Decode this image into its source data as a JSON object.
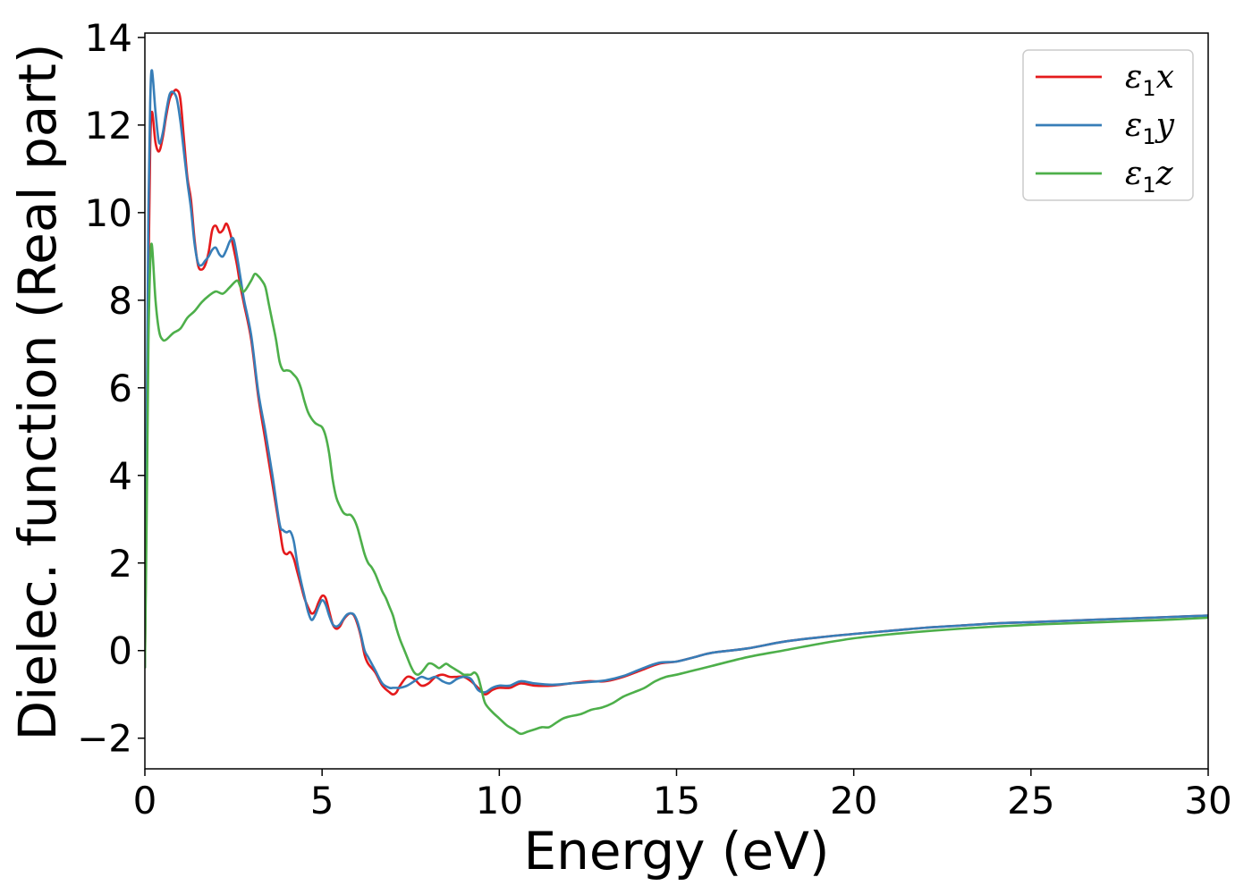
{
  "chart_data": {
    "type": "line",
    "title": "",
    "xlabel": "Energy (eV)",
    "ylabel": "Dielec. function (Real part)",
    "xlim": [
      0,
      30
    ],
    "ylim": [
      -2.7,
      14.1
    ],
    "xticks": [
      0,
      5,
      10,
      15,
      20,
      25,
      30
    ],
    "xtick_labels": [
      "0",
      "5",
      "10",
      "15",
      "20",
      "25",
      "30"
    ],
    "yticks": [
      -2,
      0,
      2,
      4,
      6,
      8,
      10,
      12,
      14
    ],
    "ytick_labels": [
      "−2",
      "0",
      "2",
      "4",
      "6",
      "8",
      "10",
      "12",
      "14"
    ],
    "grid": false,
    "legend_position": "top-right",
    "series": [
      {
        "name": "ε₁x",
        "legend": {
          "symbol": "ε",
          "sub": "1",
          "axis": "x"
        },
        "color": "#e41a1c",
        "x": [
          0,
          0.05,
          0.1,
          0.15,
          0.2,
          0.3,
          0.4,
          0.5,
          0.6,
          0.7,
          0.8,
          0.9,
          1.0,
          1.1,
          1.2,
          1.3,
          1.4,
          1.5,
          1.6,
          1.7,
          1.8,
          1.9,
          2.0,
          2.1,
          2.2,
          2.3,
          2.4,
          2.5,
          2.6,
          2.7,
          2.8,
          3.0,
          3.2,
          3.4,
          3.6,
          3.8,
          3.9,
          4.0,
          4.1,
          4.2,
          4.3,
          4.4,
          4.5,
          4.6,
          4.7,
          4.8,
          4.9,
          5.0,
          5.1,
          5.2,
          5.3,
          5.4,
          5.5,
          5.6,
          5.7,
          5.8,
          5.9,
          6.0,
          6.1,
          6.2,
          6.3,
          6.5,
          6.7,
          6.9,
          7.0,
          7.1,
          7.2,
          7.4,
          7.6,
          7.8,
          8.0,
          8.2,
          8.4,
          8.6,
          8.8,
          9.0,
          9.2,
          9.4,
          9.6,
          9.8,
          10.0,
          10.3,
          10.6,
          11.0,
          11.5,
          12.0,
          12.5,
          13.0,
          13.5,
          14.0,
          14.5,
          15.0,
          15.5,
          16.0,
          17.0,
          18.0,
          19.0,
          20.0,
          21.0,
          22.0,
          23.0,
          24.0,
          25.0,
          26.0,
          27.0,
          28.0,
          29.0,
          30.0
        ],
        "y": [
          -0.4,
          4.0,
          8.5,
          11.5,
          12.3,
          11.6,
          11.4,
          11.7,
          12.2,
          12.6,
          12.75,
          12.8,
          12.6,
          11.7,
          10.8,
          10.3,
          9.4,
          8.8,
          8.7,
          8.8,
          9.1,
          9.6,
          9.7,
          9.55,
          9.6,
          9.75,
          9.55,
          9.2,
          8.8,
          8.3,
          7.9,
          7.1,
          5.8,
          4.8,
          3.8,
          2.8,
          2.3,
          2.2,
          2.25,
          2.1,
          1.8,
          1.5,
          1.2,
          1.0,
          0.85,
          0.9,
          1.1,
          1.25,
          1.2,
          0.9,
          0.6,
          0.5,
          0.55,
          0.7,
          0.8,
          0.85,
          0.8,
          0.6,
          0.3,
          -0.1,
          -0.3,
          -0.5,
          -0.8,
          -0.95,
          -1.0,
          -0.95,
          -0.8,
          -0.6,
          -0.65,
          -0.8,
          -0.75,
          -0.6,
          -0.55,
          -0.6,
          -0.6,
          -0.6,
          -0.7,
          -0.85,
          -1.0,
          -0.9,
          -0.85,
          -0.85,
          -0.75,
          -0.8,
          -0.8,
          -0.75,
          -0.7,
          -0.7,
          -0.6,
          -0.45,
          -0.3,
          -0.25,
          -0.15,
          -0.05,
          0.05,
          0.2,
          0.3,
          0.38,
          0.45,
          0.52,
          0.57,
          0.62,
          0.65,
          0.68,
          0.71,
          0.74,
          0.77,
          0.8
        ]
      },
      {
        "name": "ε₁y",
        "legend": {
          "symbol": "ε",
          "sub": "1",
          "axis": "y"
        },
        "color": "#377eb8",
        "x": [
          0,
          0.05,
          0.1,
          0.15,
          0.2,
          0.3,
          0.4,
          0.5,
          0.6,
          0.7,
          0.8,
          0.9,
          1.0,
          1.1,
          1.2,
          1.3,
          1.4,
          1.5,
          1.6,
          1.7,
          1.8,
          1.9,
          2.0,
          2.1,
          2.2,
          2.3,
          2.4,
          2.5,
          2.6,
          2.7,
          2.8,
          3.0,
          3.2,
          3.4,
          3.6,
          3.8,
          3.9,
          4.0,
          4.1,
          4.2,
          4.3,
          4.4,
          4.5,
          4.6,
          4.7,
          4.8,
          4.9,
          5.0,
          5.1,
          5.2,
          5.3,
          5.4,
          5.5,
          5.6,
          5.7,
          5.8,
          5.9,
          6.0,
          6.1,
          6.2,
          6.3,
          6.5,
          6.7,
          6.9,
          7.0,
          7.1,
          7.2,
          7.4,
          7.6,
          7.8,
          8.0,
          8.2,
          8.4,
          8.6,
          8.8,
          9.0,
          9.2,
          9.4,
          9.6,
          9.8,
          10.0,
          10.3,
          10.6,
          11.0,
          11.5,
          12.0,
          12.5,
          13.0,
          13.5,
          14.0,
          14.5,
          15.0,
          15.5,
          16.0,
          17.0,
          18.0,
          19.0,
          20.0,
          21.0,
          22.0,
          23.0,
          24.0,
          25.0,
          26.0,
          27.0,
          28.0,
          29.0,
          30.0
        ],
        "y": [
          -0.4,
          5.0,
          10.0,
          12.5,
          13.25,
          12.3,
          11.6,
          11.8,
          12.3,
          12.7,
          12.75,
          12.6,
          12.1,
          11.4,
          10.7,
          10.1,
          9.3,
          8.85,
          8.8,
          8.9,
          9.0,
          9.15,
          9.2,
          9.05,
          9.0,
          9.15,
          9.35,
          9.4,
          9.0,
          8.5,
          8.0,
          7.2,
          5.9,
          5.0,
          4.0,
          2.9,
          2.75,
          2.7,
          2.72,
          2.5,
          2.0,
          1.6,
          1.25,
          0.9,
          0.7,
          0.8,
          1.0,
          1.15,
          1.05,
          0.8,
          0.6,
          0.55,
          0.6,
          0.72,
          0.82,
          0.85,
          0.82,
          0.65,
          0.35,
          0.0,
          -0.15,
          -0.45,
          -0.75,
          -0.85,
          -0.85,
          -0.85,
          -0.85,
          -0.8,
          -0.7,
          -0.6,
          -0.65,
          -0.6,
          -0.7,
          -0.75,
          -0.65,
          -0.6,
          -0.65,
          -0.9,
          -0.95,
          -0.85,
          -0.8,
          -0.8,
          -0.7,
          -0.75,
          -0.78,
          -0.75,
          -0.72,
          -0.68,
          -0.58,
          -0.42,
          -0.28,
          -0.25,
          -0.15,
          -0.05,
          0.05,
          0.2,
          0.3,
          0.38,
          0.45,
          0.52,
          0.57,
          0.62,
          0.65,
          0.68,
          0.71,
          0.74,
          0.77,
          0.8
        ]
      },
      {
        "name": "ε₁z",
        "legend": {
          "symbol": "ε",
          "sub": "1",
          "axis": "z"
        },
        "color": "#4daf4a",
        "x": [
          0,
          0.05,
          0.1,
          0.15,
          0.2,
          0.3,
          0.4,
          0.5,
          0.6,
          0.8,
          1.0,
          1.2,
          1.4,
          1.6,
          1.8,
          2.0,
          2.2,
          2.4,
          2.6,
          2.7,
          2.8,
          3.0,
          3.1,
          3.2,
          3.3,
          3.4,
          3.5,
          3.6,
          3.7,
          3.8,
          3.9,
          4.0,
          4.1,
          4.2,
          4.3,
          4.4,
          4.5,
          4.6,
          4.7,
          4.8,
          4.9,
          5.0,
          5.1,
          5.2,
          5.3,
          5.4,
          5.5,
          5.6,
          5.7,
          5.8,
          5.9,
          6.0,
          6.1,
          6.2,
          6.3,
          6.4,
          6.5,
          6.6,
          6.7,
          6.8,
          6.9,
          7.0,
          7.1,
          7.2,
          7.3,
          7.4,
          7.5,
          7.6,
          7.7,
          7.8,
          7.9,
          8.0,
          8.1,
          8.2,
          8.3,
          8.4,
          8.5,
          8.6,
          8.7,
          8.8,
          8.9,
          9.0,
          9.1,
          9.2,
          9.3,
          9.4,
          9.5,
          9.6,
          9.8,
          10.0,
          10.2,
          10.4,
          10.6,
          10.8,
          11.0,
          11.2,
          11.4,
          11.6,
          11.8,
          12.0,
          12.3,
          12.6,
          12.9,
          13.2,
          13.5,
          13.8,
          14.1,
          14.4,
          14.7,
          15.0,
          15.5,
          16.0,
          17.0,
          18.0,
          19.0,
          20.0,
          21.0,
          22.0,
          23.0,
          24.0,
          25.0,
          26.0,
          27.0,
          28.0,
          29.0,
          30.0
        ],
        "y": [
          -0.4,
          3.0,
          7.0,
          8.8,
          9.25,
          8.0,
          7.3,
          7.1,
          7.1,
          7.25,
          7.35,
          7.6,
          7.75,
          7.95,
          8.1,
          8.2,
          8.15,
          8.3,
          8.45,
          8.3,
          8.2,
          8.45,
          8.6,
          8.55,
          8.45,
          8.3,
          7.9,
          7.5,
          7.1,
          6.6,
          6.4,
          6.4,
          6.38,
          6.3,
          6.2,
          6.0,
          5.7,
          5.45,
          5.3,
          5.2,
          5.15,
          5.1,
          4.9,
          4.5,
          3.9,
          3.5,
          3.3,
          3.15,
          3.1,
          3.1,
          3.0,
          2.8,
          2.5,
          2.2,
          2.0,
          1.9,
          1.75,
          1.55,
          1.35,
          1.2,
          1.0,
          0.8,
          0.5,
          0.25,
          0.05,
          -0.15,
          -0.35,
          -0.5,
          -0.55,
          -0.5,
          -0.4,
          -0.3,
          -0.3,
          -0.35,
          -0.4,
          -0.35,
          -0.3,
          -0.35,
          -0.4,
          -0.45,
          -0.5,
          -0.55,
          -0.55,
          -0.55,
          -0.5,
          -0.6,
          -0.9,
          -1.2,
          -1.4,
          -1.55,
          -1.7,
          -1.8,
          -1.9,
          -1.85,
          -1.8,
          -1.75,
          -1.75,
          -1.65,
          -1.55,
          -1.5,
          -1.45,
          -1.35,
          -1.3,
          -1.2,
          -1.05,
          -0.95,
          -0.85,
          -0.7,
          -0.6,
          -0.55,
          -0.45,
          -0.35,
          -0.15,
          0.0,
          0.15,
          0.28,
          0.37,
          0.44,
          0.5,
          0.55,
          0.59,
          0.62,
          0.65,
          0.68,
          0.71,
          0.75
        ]
      }
    ]
  }
}
